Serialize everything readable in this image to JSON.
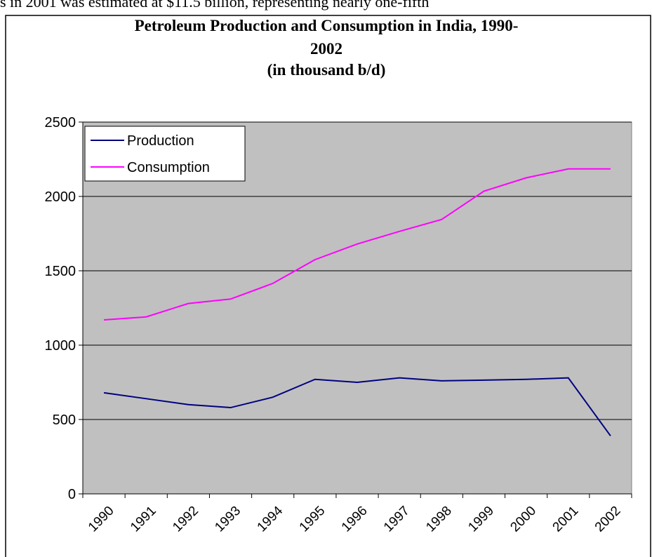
{
  "context_text": "s in 2001 was estimated at $11.5 billion, representing nearly one-fifth",
  "chart_data": {
    "type": "line",
    "title": [
      "Petroleum Production and Consumption in India, 1990-",
      "2002",
      "(in thousand b/d)"
    ],
    "categories": [
      "1990",
      "1991",
      "1992",
      "1993",
      "1994",
      "1995",
      "1996",
      "1997",
      "1998",
      "1999",
      "2000",
      "2001",
      "2002"
    ],
    "series": [
      {
        "name": "Production",
        "color": "#000080",
        "values": [
          680,
          640,
          600,
          580,
          650,
          770,
          750,
          780,
          760,
          765,
          770,
          780,
          390
        ]
      },
      {
        "name": "Consumption",
        "color": "#ff00ff",
        "values": [
          1170,
          1190,
          1280,
          1310,
          1415,
          1575,
          1680,
          1765,
          1845,
          2035,
          2125,
          2185,
          2185
        ]
      }
    ],
    "ylim": [
      0,
      2500
    ],
    "yticks": [
      0,
      500,
      1000,
      1500,
      2000,
      2500
    ],
    "grid": true,
    "legend": "top-left",
    "plot_background": "#c0c0c0"
  }
}
